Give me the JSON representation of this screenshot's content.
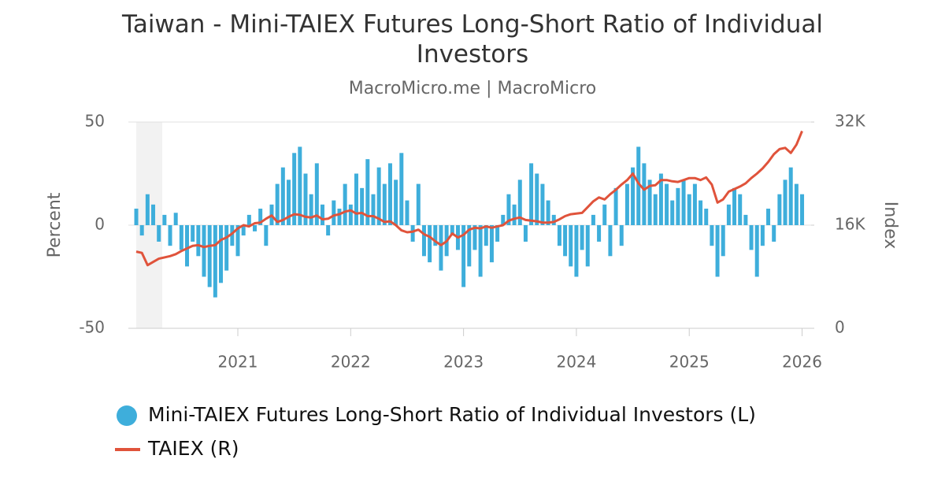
{
  "chart_data": {
    "type": "bar-line",
    "title": "Taiwan - Mini-TAIEX Futures Long-Short Ratio of Individual Investors",
    "subtitle": "MacroMicro.me | MacroMicro",
    "y_label": "Percent",
    "y2_label": "Index",
    "x": [
      2020.1,
      2020.15,
      2020.2,
      2020.25,
      2020.3,
      2020.35,
      2020.4,
      2020.45,
      2020.5,
      2020.55,
      2020.6,
      2020.65,
      2020.7,
      2020.75,
      2020.8,
      2020.85,
      2020.9,
      2020.95,
      2021,
      2021.05,
      2021.1,
      2021.15,
      2021.2,
      2021.25,
      2021.3,
      2021.35,
      2021.4,
      2021.45,
      2021.5,
      2021.55,
      2021.6,
      2021.65,
      2021.7,
      2021.75,
      2021.8,
      2021.85,
      2021.9,
      2021.95,
      2022,
      2022.05,
      2022.1,
      2022.15,
      2022.2,
      2022.25,
      2022.3,
      2022.35,
      2022.4,
      2022.45,
      2022.5,
      2022.55,
      2022.6,
      2022.65,
      2022.7,
      2022.75,
      2022.8,
      2022.85,
      2022.9,
      2022.95,
      2023,
      2023.05,
      2023.1,
      2023.15,
      2023.2,
      2023.25,
      2023.3,
      2023.35,
      2023.4,
      2023.45,
      2023.5,
      2023.55,
      2023.6,
      2023.65,
      2023.7,
      2023.75,
      2023.8,
      2023.85,
      2023.9,
      2023.95,
      2024,
      2024.05,
      2024.1,
      2024.15,
      2024.2,
      2024.25,
      2024.3,
      2024.35,
      2024.4,
      2024.45,
      2024.5,
      2024.55,
      2024.6,
      2024.65,
      2024.7,
      2024.75,
      2024.8,
      2024.85,
      2024.9,
      2024.95,
      2025,
      2025.05,
      2025.1,
      2025.15,
      2025.2,
      2025.25,
      2025.3,
      2025.35,
      2025.4,
      2025.45,
      2025.5,
      2025.55,
      2025.6,
      2025.65,
      2025.7,
      2025.75,
      2025.8,
      2025.85,
      2025.9,
      2025.95,
      2026
    ],
    "series": [
      {
        "name": "Mini-TAIEX Futures Long-Short Ratio of Individual Investors (L)",
        "color": "#3eaedb",
        "type": "bar",
        "values": [
          8,
          -5,
          15,
          10,
          -8,
          5,
          -10,
          6,
          -12,
          -20,
          -8,
          -15,
          -25,
          -30,
          -35,
          -28,
          -22,
          -10,
          -15,
          -5,
          5,
          -3,
          8,
          -10,
          10,
          20,
          28,
          22,
          35,
          38,
          25,
          15,
          30,
          10,
          -5,
          12,
          8,
          20,
          10,
          25,
          18,
          32,
          15,
          28,
          20,
          30,
          22,
          35,
          12,
          -8,
          20,
          -15,
          -18,
          -10,
          -22,
          -15,
          -5,
          -12,
          -30,
          -20,
          -12,
          -25,
          -10,
          -18,
          -8,
          5,
          15,
          10,
          22,
          -8,
          30,
          25,
          20,
          12,
          5,
          -10,
          -15,
          -20,
          -25,
          -12,
          -20,
          5,
          -8,
          10,
          -15,
          18,
          -10,
          20,
          28,
          38,
          30,
          22,
          15,
          25,
          20,
          12,
          18,
          22,
          15,
          20,
          12,
          8,
          -10,
          -25,
          -15,
          10,
          18,
          15,
          5,
          -12,
          -25,
          -10,
          8,
          -8,
          15,
          22,
          28,
          20,
          15
        ]
      },
      {
        "name": "TAIEX (R)",
        "color": "#e0533b",
        "type": "line",
        "axis": "y2",
        "values": [
          11900,
          11700,
          9800,
          10300,
          10800,
          11000,
          11200,
          11500,
          12000,
          12400,
          12800,
          12900,
          12600,
          12800,
          12900,
          13700,
          14100,
          14700,
          15500,
          16000,
          15800,
          16300,
          16400,
          17000,
          17500,
          16500,
          16800,
          17300,
          17700,
          17600,
          17300,
          17200,
          17500,
          16900,
          17000,
          17500,
          17700,
          18100,
          18300,
          17800,
          17900,
          17400,
          17400,
          17000,
          16500,
          16600,
          16000,
          15200,
          14900,
          15000,
          15300,
          14600,
          14200,
          13500,
          12900,
          13500,
          14700,
          14100,
          14500,
          15300,
          15600,
          15500,
          15800,
          15600,
          15800,
          16000,
          16700,
          17000,
          17200,
          16800,
          16700,
          16600,
          16400,
          16400,
          16500,
          16900,
          17400,
          17700,
          17800,
          17900,
          18800,
          19700,
          20300,
          20000,
          20800,
          21500,
          22300,
          23000,
          24000,
          22500,
          21500,
          22100,
          22200,
          23000,
          23000,
          22800,
          22700,
          23000,
          23300,
          23300,
          23000,
          23400,
          22300,
          19500,
          20000,
          21200,
          21600,
          22000,
          22500,
          23300,
          24000,
          24800,
          25800,
          27000,
          27800,
          28000,
          27200,
          28500,
          30600
        ]
      }
    ],
    "xlim": [
      2020.03,
      2026.08
    ],
    "xticks": [
      2021,
      2022,
      2023,
      2024,
      2025,
      2026
    ],
    "ylim": [
      -50,
      50
    ],
    "yticks": [
      -50,
      0,
      50
    ],
    "y2lim": [
      0,
      32000
    ],
    "y2ticks": [
      0,
      {
        "value": 16000,
        "label": "16K"
      },
      {
        "value": 32000,
        "label": "32K"
      }
    ],
    "shaded_x": [
      2020.1,
      2020.33
    ],
    "grid": true,
    "legend": "bottom"
  }
}
